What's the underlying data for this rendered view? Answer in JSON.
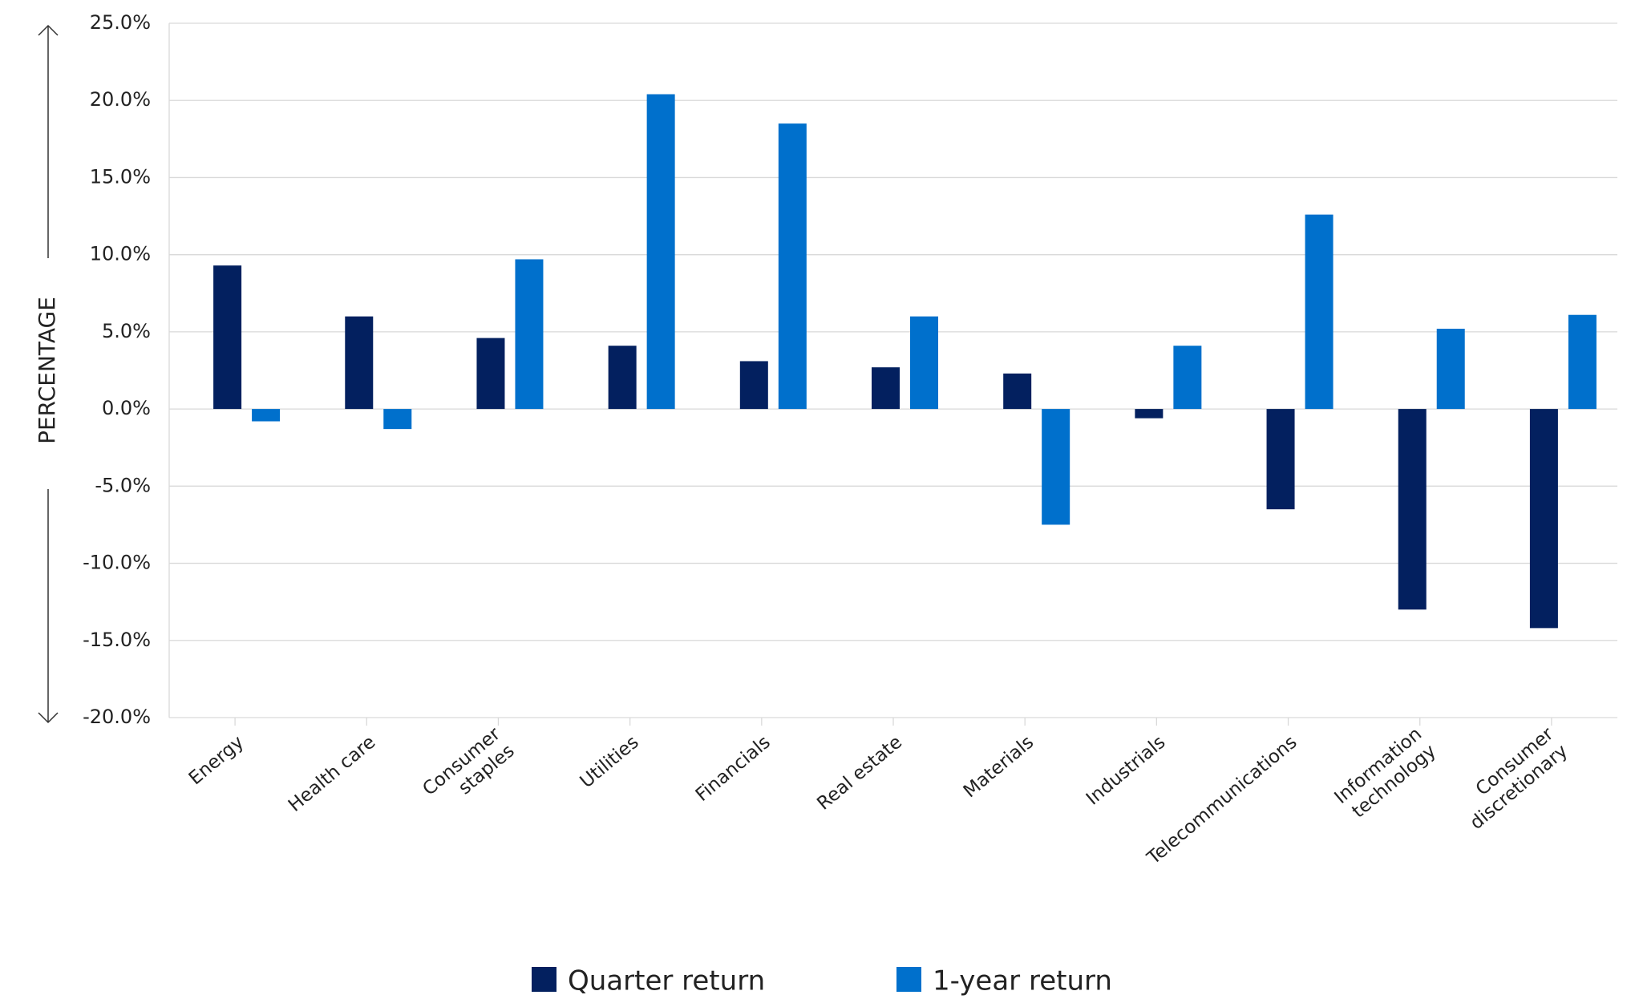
{
  "chart_data": {
    "type": "bar",
    "y_label": "PERCENTAGE",
    "categories": [
      "Energy",
      "Health care",
      "Consumer\nstaples",
      "Utilities",
      "Financials",
      "Real estate",
      "Materials",
      "Industrials",
      "Telecommunications",
      "Information\ntechnology",
      "Consumer\ndiscretionary"
    ],
    "series": [
      {
        "name": "Quarter return",
        "color": "#03205f",
        "values": [
          9.3,
          6.0,
          4.6,
          4.1,
          3.1,
          2.7,
          2.3,
          -0.6,
          -6.5,
          -13.0,
          -14.2
        ]
      },
      {
        "name": "1-year return",
        "color": "#0070cc",
        "values": [
          -0.8,
          -1.3,
          9.7,
          20.4,
          18.5,
          6.0,
          -7.5,
          4.1,
          12.6,
          5.2,
          6.1
        ]
      }
    ],
    "ylim": [
      -20,
      25
    ],
    "yticks": [
      {
        "value": 25,
        "label": "25.0%"
      },
      {
        "value": 20,
        "label": "20.0%"
      },
      {
        "value": 15,
        "label": "15.0%"
      },
      {
        "value": 10,
        "label": "10.0%"
      },
      {
        "value": 5,
        "label": "5.0%"
      },
      {
        "value": 0,
        "label": "0.0%"
      },
      {
        "value": -5,
        "label": "-5.0%"
      },
      {
        "value": -10,
        "label": "-10.0%"
      },
      {
        "value": -15,
        "label": "-15.0%"
      },
      {
        "value": -20,
        "label": "-20.0%"
      }
    ],
    "grid": true,
    "legend": "bottom"
  }
}
